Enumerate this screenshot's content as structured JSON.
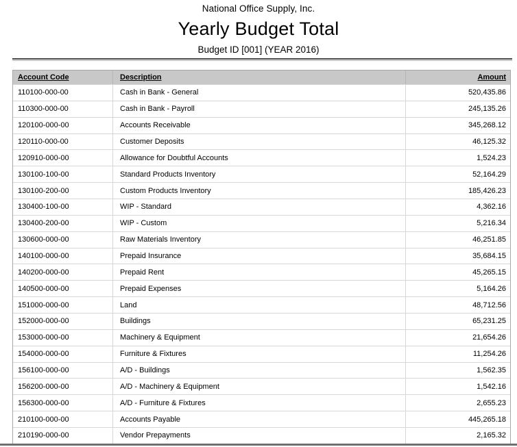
{
  "report": {
    "company": "National Office Supply, Inc.",
    "title": "Yearly Budget Total",
    "subtitle": "Budget ID [001] (YEAR 2016)"
  },
  "table": {
    "columns": [
      {
        "key": "code",
        "label": "Account Code"
      },
      {
        "key": "description",
        "label": "Description"
      },
      {
        "key": "amount",
        "label": "Amount"
      }
    ],
    "rows": [
      {
        "code": "110100-000-00",
        "description": "Cash in Bank - General",
        "amount": "520,435.86"
      },
      {
        "code": "110300-000-00",
        "description": "Cash in Bank - Payroll",
        "amount": "245,135.26"
      },
      {
        "code": "120100-000-00",
        "description": "Accounts Receivable",
        "amount": "345,268.12"
      },
      {
        "code": "120110-000-00",
        "description": "Customer Deposits",
        "amount": "46,125.32"
      },
      {
        "code": "120910-000-00",
        "description": "Allowance for Doubtful Accounts",
        "amount": "1,524.23"
      },
      {
        "code": "130100-100-00",
        "description": "Standard Products Inventory",
        "amount": "52,164.29"
      },
      {
        "code": "130100-200-00",
        "description": "Custom Products Inventory",
        "amount": "185,426.23"
      },
      {
        "code": "130400-100-00",
        "description": "WIP - Standard",
        "amount": "4,362.16"
      },
      {
        "code": "130400-200-00",
        "description": "WIP - Custom",
        "amount": "5,216.34"
      },
      {
        "code": "130600-000-00",
        "description": "Raw Materials Inventory",
        "amount": "46,251.85"
      },
      {
        "code": "140100-000-00",
        "description": "Prepaid Insurance",
        "amount": "35,684.15"
      },
      {
        "code": "140200-000-00",
        "description": "Prepaid Rent",
        "amount": "45,265.15"
      },
      {
        "code": "140500-000-00",
        "description": "Prepaid Expenses",
        "amount": "5,164.26"
      },
      {
        "code": "151000-000-00",
        "description": "Land",
        "amount": "48,712.56"
      },
      {
        "code": "152000-000-00",
        "description": "Buildings",
        "amount": "65,231.25"
      },
      {
        "code": "153000-000-00",
        "description": "Machinery & Equipment",
        "amount": "21,654.26"
      },
      {
        "code": "154000-000-00",
        "description": "Furniture & Fixtures",
        "amount": "11,254.26"
      },
      {
        "code": "156100-000-00",
        "description": "A/D - Buildings",
        "amount": "1,562.35"
      },
      {
        "code": "156200-000-00",
        "description": "A/D - Machinery & Equipment",
        "amount": "1,542.16"
      },
      {
        "code": "156300-000-00",
        "description": "A/D - Furniture & Fixtures",
        "amount": "2,655.23"
      },
      {
        "code": "210100-000-00",
        "description": "Accounts Payable",
        "amount": "445,265.18"
      },
      {
        "code": "210190-000-00",
        "description": "Vendor Prepayments",
        "amount": "2,165.32"
      }
    ]
  },
  "colors": {
    "header_bg": "#c8c8c8",
    "grid_line": "#d6d6d6",
    "outer_border": "#a8a8a8",
    "separator_dark": "#4a4a4a",
    "separator_light": "#b0b0b0",
    "bottom_edge": "#6f6f6f",
    "text": "#000000"
  }
}
